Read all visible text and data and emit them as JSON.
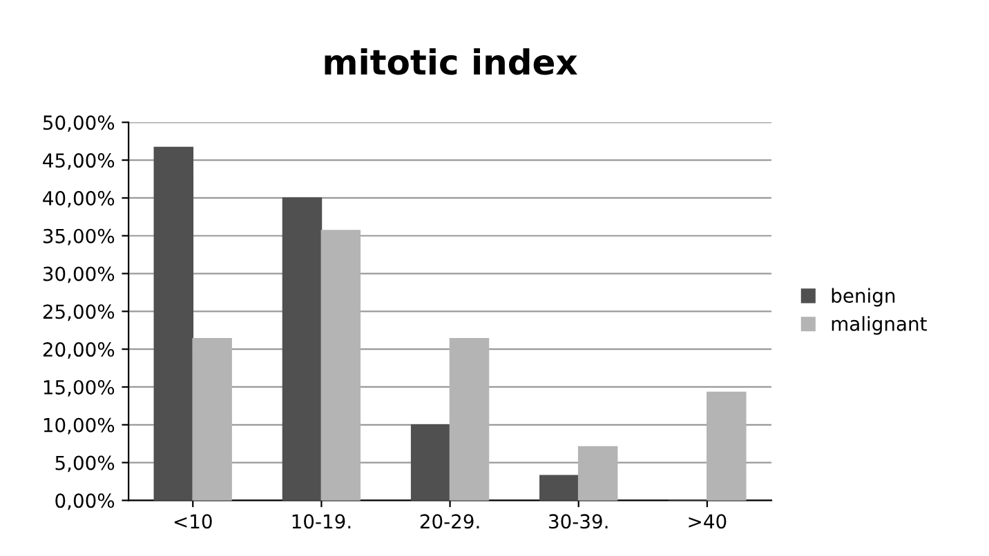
{
  "chart_data": {
    "type": "bar",
    "title": "mitotic index",
    "categories": [
      "<10",
      "10-19.",
      "20-29.",
      "30-39.",
      ">40"
    ],
    "series": [
      {
        "name": "benign",
        "color": "#505050",
        "values": [
          46.7,
          40,
          10,
          3.3,
          0
        ]
      },
      {
        "name": "malignant",
        "color": "#b4b4b4",
        "values": [
          21.4,
          35.7,
          21.4,
          7.1,
          14.3
        ]
      }
    ],
    "ylim": [
      0,
      50
    ],
    "yticks": [
      {
        "value": 0,
        "label": "0,00%"
      },
      {
        "value": 5,
        "label": "5,00%"
      },
      {
        "value": 10,
        "label": "10,00%"
      },
      {
        "value": 15,
        "label": "15,00%"
      },
      {
        "value": 20,
        "label": "20,00%"
      },
      {
        "value": 25,
        "label": "25,00%"
      },
      {
        "value": 30,
        "label": "30,00%"
      },
      {
        "value": 35,
        "label": "35,00%"
      },
      {
        "value": 40,
        "label": "40,00%"
      },
      {
        "value": 45,
        "label": "45,00%"
      },
      {
        "value": 50,
        "label": "50,00%"
      }
    ],
    "grid": "y",
    "legend": "right"
  }
}
